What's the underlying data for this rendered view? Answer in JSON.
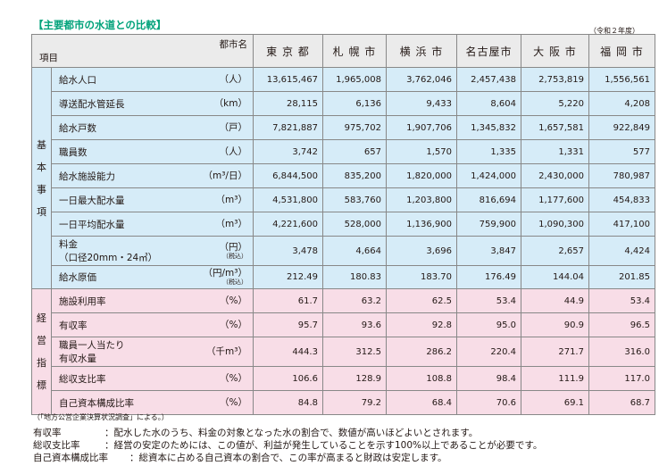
{
  "title": "【主要都市の水道との比較】",
  "year_note": "（令和２年度）",
  "header": {
    "corner_city": "都市名",
    "corner_item": "項目",
    "cities": [
      "東 京 都",
      "札 幌 市",
      "横 浜 市",
      "名古屋市",
      "大 阪 市",
      "福 岡 市"
    ]
  },
  "categories": {
    "basic": "基本事項",
    "management": "経営指標"
  },
  "basic_rows": [
    {
      "item": "給水人口",
      "unit": "（人）",
      "values": [
        "13,615,467",
        "1,965,008",
        "3,762,046",
        "2,457,438",
        "2,753,819",
        "1,556,561"
      ]
    },
    {
      "item": "導送配水管延長",
      "unit": "（km）",
      "values": [
        "28,115",
        "6,136",
        "9,433",
        "8,604",
        "5,220",
        "4,208"
      ]
    },
    {
      "item": "給水戸数",
      "unit": "（戸）",
      "values": [
        "7,821,887",
        "975,702",
        "1,907,706",
        "1,345,832",
        "1,657,581",
        "922,849"
      ]
    },
    {
      "item": "職員数",
      "unit": "（人）",
      "values": [
        "3,742",
        "657",
        "1,570",
        "1,335",
        "1,331",
        "577"
      ]
    },
    {
      "item": "給水施設能力",
      "unit": "（m³/日）",
      "values": [
        "6,844,500",
        "835,200",
        "1,820,000",
        "1,424,000",
        "2,430,000",
        "780,987"
      ]
    },
    {
      "item": "一日最大配水量",
      "unit": "（m³）",
      "values": [
        "4,531,800",
        "583,760",
        "1,203,800",
        "816,694",
        "1,177,600",
        "454,833"
      ]
    },
    {
      "item": "一日平均配水量",
      "unit": "（m³）",
      "values": [
        "4,221,600",
        "528,000",
        "1,136,900",
        "759,900",
        "1,090,300",
        "417,100"
      ]
    },
    {
      "item": "料金",
      "item2": "（口径20mm・24㎥）",
      "unit": "（円）",
      "unit_tax": "（税込）",
      "values": [
        "3,478",
        "4,664",
        "3,696",
        "3,847",
        "2,657",
        "4,424"
      ]
    },
    {
      "item": "給水原価",
      "unit": "（円/m³）",
      "unit_tax": "（税込）",
      "values": [
        "212.49",
        "180.83",
        "183.70",
        "176.49",
        "144.04",
        "201.85"
      ]
    }
  ],
  "management_rows": [
    {
      "item": "施設利用率",
      "unit": "（%）",
      "values": [
        "61.7",
        "63.2",
        "62.5",
        "53.4",
        "44.9",
        "53.4"
      ]
    },
    {
      "item": "有収率",
      "unit": "（%）",
      "values": [
        "95.7",
        "93.6",
        "92.8",
        "95.0",
        "90.9",
        "96.5"
      ]
    },
    {
      "item": "職員一人当たり",
      "item2": "有収水量",
      "unit": "（千m³）",
      "values": [
        "444.3",
        "312.5",
        "286.2",
        "220.4",
        "271.7",
        "316.0"
      ]
    },
    {
      "item": "総収支比率",
      "unit": "（%）",
      "values": [
        "106.6",
        "128.9",
        "108.8",
        "98.4",
        "111.9",
        "117.0"
      ]
    },
    {
      "item": "自己資本構成比率",
      "unit": "（%）",
      "values": [
        "84.8",
        "79.2",
        "68.4",
        "70.6",
        "69.1",
        "68.7"
      ]
    }
  ],
  "source": "（「地方公営企業決算状況調査」による。）",
  "notes": [
    {
      "term": "有収率",
      "text": "：配水した水のうち、料金の対象となった水の割合で、数値が高いほどよいとされます。"
    },
    {
      "term": "総収支比率",
      "text": "：経営の安定のためには、この値が、利益が発生していることを示す100%以上であることが必要です。"
    },
    {
      "term": "自己資本構成比率",
      "text": "：総資本に占める自己資本の割合で、この率が高まると財政は安定します。"
    }
  ],
  "colors": {
    "title": "#00a27a",
    "basic_bg": "#d6ecf8",
    "management_bg": "#f8dde7",
    "header_bg": "#ebebeb"
  }
}
